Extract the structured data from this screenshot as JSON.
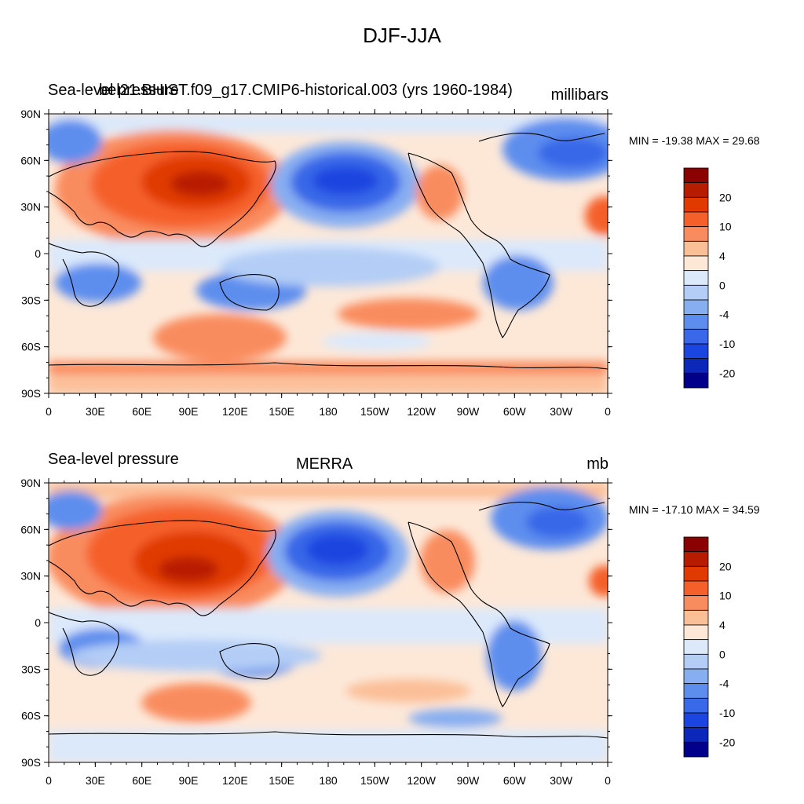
{
  "figure": {
    "title": "DJF-JJA"
  },
  "panels": [
    {
      "left_title": "Sea-level pressure",
      "center_title": "bel21.BHIST.f09_g17.CMIP6-historical.003 (yrs 1960-1984)",
      "right_title": "millibars",
      "stats": "MIN = -19.38 MAX =  29.68"
    },
    {
      "left_title": "Sea-level pressure",
      "center_title": "MERRA",
      "right_title": "mb",
      "stats": "MIN = -17.10 MAX =  34.59"
    }
  ],
  "axes": {
    "lat_labels": [
      "90N",
      "60N",
      "30N",
      "0",
      "30S",
      "60S",
      "90S"
    ],
    "lon_labels": [
      "0",
      "30E",
      "60E",
      "90E",
      "120E",
      "150E",
      "180",
      "150W",
      "120W",
      "90W",
      "60W",
      "30W",
      "0"
    ]
  },
  "colorbar": {
    "colors": [
      "#8b0000",
      "#b81c00",
      "#e03a00",
      "#f5602a",
      "#f98c5e",
      "#fbbf98",
      "#fde8d8",
      "#dbe9fb",
      "#b3cdf6",
      "#87aef1",
      "#5d8eee",
      "#3968e8",
      "#1b45e0",
      "#0b28bb",
      "#00008b"
    ],
    "labels": [
      "20",
      "10",
      "4",
      "0",
      "-4",
      "-10",
      "-20"
    ]
  }
}
